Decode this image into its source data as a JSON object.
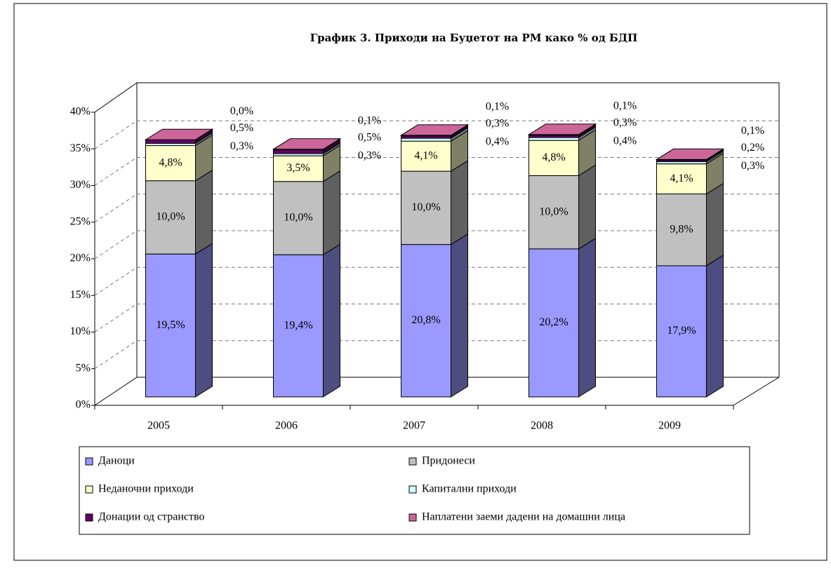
{
  "chart_data": {
    "type": "bar3d_stacked",
    "title": "График 3. Приходи на Буџетот на РМ како % од БДП",
    "categories": [
      "2005",
      "2006",
      "2007",
      "2008",
      "2009"
    ],
    "series": [
      {
        "name": "Даноци",
        "color": "#9999ff",
        "values": [
          19.5,
          19.4,
          20.8,
          20.2,
          17.9
        ],
        "value_labels": [
          "19,5%",
          "19,4%",
          "20,8%",
          "20,2%",
          "17,9%"
        ]
      },
      {
        "name": "Придонеси",
        "color": "#c0c0c0",
        "values": [
          10.0,
          10.0,
          10.0,
          10.0,
          9.8
        ],
        "value_labels": [
          "10,0%",
          "10,0%",
          "10,0%",
          "10,0%",
          "9,8%"
        ]
      },
      {
        "name": "Неданочни приходи",
        "color": "#ffffcc",
        "values": [
          4.8,
          3.5,
          4.1,
          4.8,
          4.1
        ],
        "value_labels": [
          "4,8%",
          "3,5%",
          "4,1%",
          "4,8%",
          "4,1%"
        ]
      },
      {
        "name": "Капитални приходи",
        "color": "#ccffff",
        "values": [
          0.3,
          0.3,
          0.4,
          0.4,
          0.3
        ],
        "value_labels": [
          "0,3%",
          "0,3%",
          "0,4%",
          "0,4%",
          "0,3%"
        ]
      },
      {
        "name": "Донации од странство",
        "color": "#660066",
        "values": [
          0.5,
          0.5,
          0.3,
          0.3,
          0.2
        ],
        "value_labels": [
          "0,5%",
          "0,5%",
          "0,3%",
          "0,3%",
          "0,2%"
        ]
      },
      {
        "name": "Наплатени заеми дадени на домашни лица",
        "color": "#cc6699",
        "values": [
          0.0,
          0.1,
          0.1,
          0.1,
          0.1
        ],
        "value_labels": [
          "0,0%",
          "0,1%",
          "0,1%",
          "0,1%",
          "0,1%"
        ]
      }
    ],
    "ylim": [
      0,
      40
    ],
    "yticks": [
      {
        "value": 0,
        "label": "0%"
      },
      {
        "value": 5,
        "label": "5%"
      },
      {
        "value": 10,
        "label": "10%"
      },
      {
        "value": 15,
        "label": "15%"
      },
      {
        "value": 20,
        "label": "20%"
      },
      {
        "value": 25,
        "label": "25%"
      },
      {
        "value": 30,
        "label": "30%"
      },
      {
        "value": 35,
        "label": "35%"
      },
      {
        "value": 40,
        "label": "40%"
      }
    ],
    "grid": true
  }
}
